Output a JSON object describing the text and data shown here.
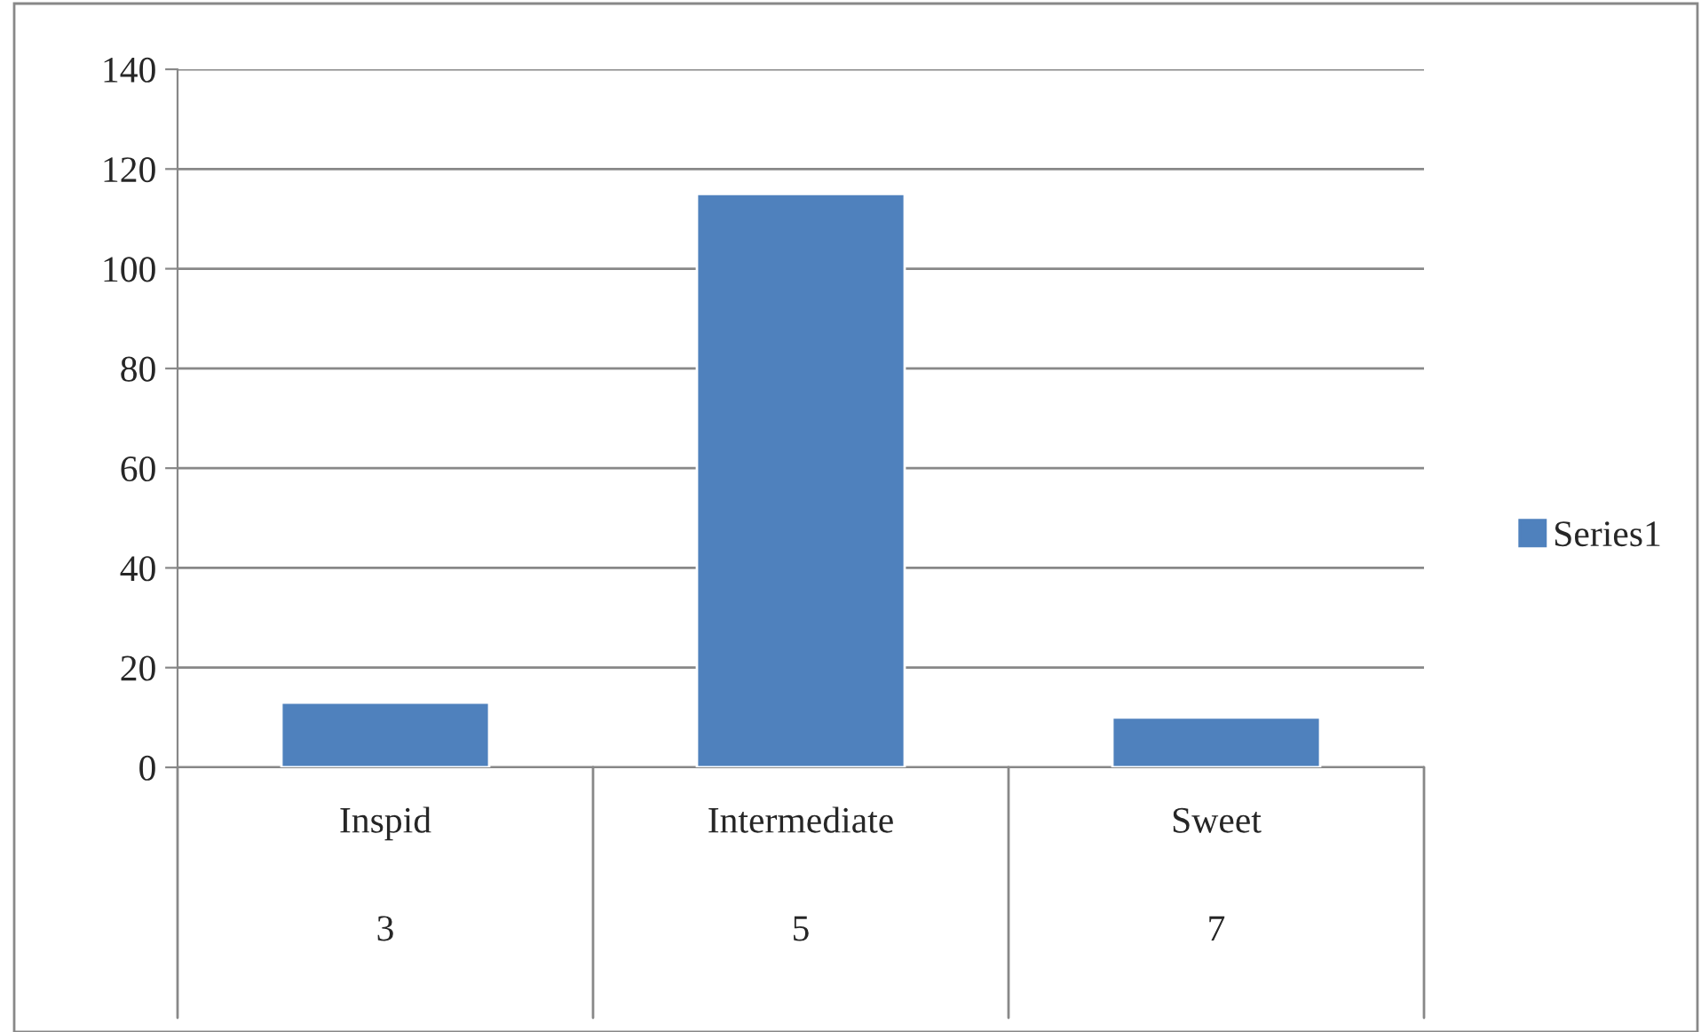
{
  "chart_data": {
    "type": "bar",
    "categories": [
      "Inspid\n3",
      "Intermediate\n5",
      "Sweet\n7"
    ],
    "series": [
      {
        "name": "Series1",
        "color": "#4f81bd",
        "values": [
          13,
          115,
          10
        ]
      }
    ],
    "ylim": [
      0,
      140
    ],
    "yticks": [
      0,
      20,
      40,
      60,
      80,
      100,
      120,
      140
    ],
    "grid": "y",
    "legend": "right"
  }
}
